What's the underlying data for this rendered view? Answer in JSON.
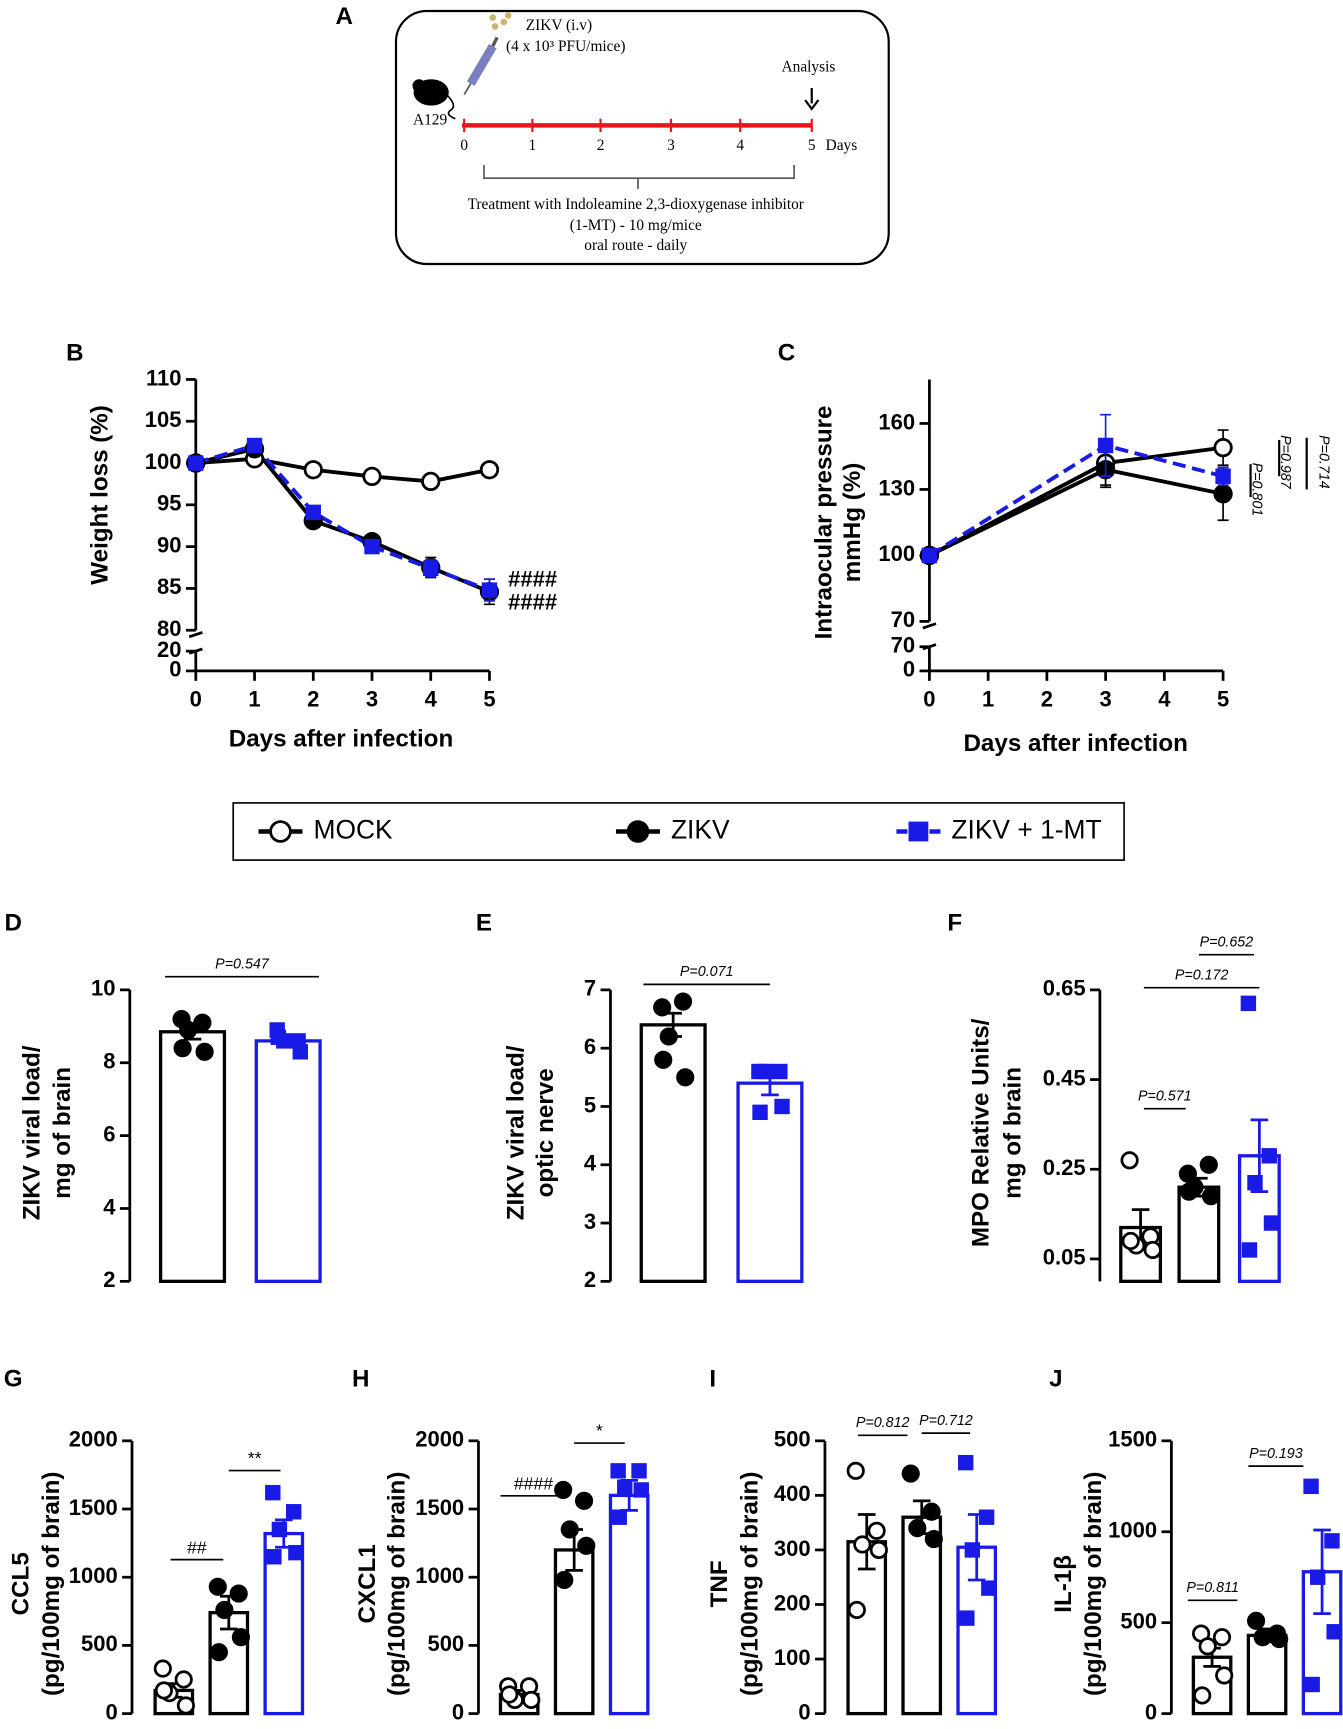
{
  "diagram": {
    "label": "A",
    "virus": "ZIKV  (i.v)",
    "dose": "(4 x 10³ PFU/mice)",
    "mouse": "A129",
    "analysis": "Analysis",
    "days": [
      0,
      1,
      2,
      3,
      4,
      5
    ],
    "days_label": "Days",
    "treatment": [
      "Treatment with Indoleamine 2,3-dioxygenase inhibitor",
      "(1-MT) - 10 mg/mice",
      "oral route - daily"
    ]
  },
  "chart_data": [
    {
      "type": "line",
      "label": "B",
      "xlabel": "Days after infection",
      "ylabel": "Weight loss (%)",
      "x": [
        0,
        1,
        2,
        3,
        4,
        5
      ],
      "xlim": [
        0,
        5
      ],
      "xticks": [
        0,
        1,
        2,
        3,
        4,
        5
      ],
      "ylim": [
        80,
        110
      ],
      "yticks": [
        80,
        85,
        90,
        95,
        100,
        105,
        110
      ],
      "ybreak": {
        "ylim": [
          0,
          20
        ],
        "yticks": [
          0,
          20
        ]
      },
      "annotations": [
        "####",
        "####"
      ],
      "series": [
        {
          "name": "MOCK",
          "color": "#000000",
          "marker": "open-circle",
          "values": [
            100,
            100.5,
            99.2,
            98.4,
            97.8,
            99.2
          ],
          "errors": [
            0,
            0.5,
            0.4,
            0.4,
            0.4,
            0.4
          ]
        },
        {
          "name": "ZIKV",
          "color": "#000000",
          "marker": "circle",
          "values": [
            100,
            101.7,
            93.1,
            90.6,
            87.5,
            84.6
          ],
          "errors": [
            0,
            0.5,
            0.6,
            0.5,
            1.2,
            1.5
          ]
        },
        {
          "name": "ZIKV + 1-MT",
          "color": "#1a1ae6",
          "marker": "square",
          "dash": true,
          "values": [
            100,
            102.1,
            94.1,
            90.0,
            87.4,
            84.8
          ],
          "errors": [
            0,
            0.5,
            0.8,
            0.6,
            1.0,
            1.3
          ]
        }
      ]
    },
    {
      "type": "line",
      "label": "C",
      "xlabel": "Days after infection",
      "ylabel": [
        "Intraocular pressure",
        "mmHg (%)"
      ],
      "x": [
        0,
        3,
        5
      ],
      "xlim": [
        0,
        5
      ],
      "xticks": [
        0,
        1,
        2,
        3,
        4,
        5
      ],
      "ylim": [
        70,
        180
      ],
      "yticks": [
        70,
        100,
        130,
        160
      ],
      "ybreak": {
        "ylim": [
          0,
          70
        ],
        "yticks": [
          0,
          70
        ]
      },
      "annotations": [
        "P=0.987",
        "P=0.714",
        "P=0.801"
      ],
      "series": [
        {
          "color": "#000000",
          "marker": "open-circle",
          "values": [
            100,
            142,
            149
          ],
          "errors": [
            0,
            10,
            8
          ]
        },
        {
          "color": "#000000",
          "marker": "circle",
          "values": [
            100,
            139,
            128
          ],
          "errors": [
            0,
            8,
            12
          ]
        },
        {
          "color": "#1a1ae6",
          "marker": "square",
          "dash": true,
          "values": [
            100,
            150,
            136
          ],
          "errors": [
            0,
            14,
            4
          ]
        }
      ]
    },
    {
      "type": "bar",
      "label": "D",
      "ylabel": [
        "ZIKV viral load/",
        "mg of brain"
      ],
      "ylim": [
        2,
        10
      ],
      "yticks": [
        2,
        4,
        6,
        8,
        10
      ],
      "annotations": [
        "P=0.547"
      ],
      "groups": [
        {
          "color": "#000000",
          "marker": "circle",
          "value": 8.85,
          "error": 0.2,
          "points": [
            9.2,
            9.1,
            8.9,
            8.3,
            8.4
          ]
        },
        {
          "color": "#1a1ae6",
          "marker": "square",
          "value": 8.6,
          "error": 0.1,
          "points": [
            8.9,
            8.6,
            8.6,
            8.3,
            8.7
          ]
        }
      ]
    },
    {
      "type": "bar",
      "label": "E",
      "ylabel": [
        "ZIKV viral load/",
        "optic nerve"
      ],
      "ylim": [
        2,
        7
      ],
      "yticks": [
        2,
        3,
        4,
        5,
        6,
        7
      ],
      "annotations": [
        "P=0.071"
      ],
      "groups": [
        {
          "color": "#000000",
          "marker": "circle",
          "value": 6.4,
          "error": 0.2,
          "points": [
            6.7,
            6.8,
            6.2,
            5.5,
            5.8
          ]
        },
        {
          "color": "#1a1ae6",
          "marker": "square",
          "value": 5.4,
          "error": 0.2,
          "points": [
            5.6,
            5.6,
            5.6,
            5.0,
            4.9
          ]
        }
      ]
    },
    {
      "type": "bar",
      "label": "F",
      "ylabel": [
        "MPO Relative Units/",
        "mg of brain"
      ],
      "ylim": [
        0,
        0.65
      ],
      "yticks": [
        0.05,
        0.25,
        0.45,
        0.65
      ],
      "annotations": [
        "P=0.571",
        "P=0.172",
        "P=0.652"
      ],
      "groups": [
        {
          "color": "#000000",
          "marker": "open-circle",
          "value": 0.12,
          "error": 0.04,
          "points": [
            0.27,
            0.1,
            0.08,
            0.07,
            0.09
          ]
        },
        {
          "color": "#000000",
          "marker": "circle",
          "value": 0.21,
          "error": 0.02,
          "points": [
            0.24,
            0.26,
            0.21,
            0.19,
            0.2
          ]
        },
        {
          "color": "#1a1ae6",
          "marker": "square",
          "value": 0.28,
          "error": 0.08,
          "points": [
            0.62,
            0.28,
            0.22,
            0.13,
            0.07
          ]
        }
      ]
    },
    {
      "type": "bar",
      "label": "G",
      "ylabel": [
        "CCL5",
        "(pg/100mg of brain)"
      ],
      "ylim": [
        0,
        2000
      ],
      "yticks": [
        0,
        500,
        1000,
        1500,
        2000
      ],
      "annotations": [
        "##",
        "**"
      ],
      "groups": [
        {
          "color": "#000000",
          "marker": "open-circle",
          "value": 170,
          "error": 50,
          "points": [
            330,
            250,
            150,
            60,
            170
          ]
        },
        {
          "color": "#000000",
          "marker": "circle",
          "value": 740,
          "error": 120,
          "points": [
            930,
            880,
            760,
            560,
            450
          ]
        },
        {
          "color": "#1a1ae6",
          "marker": "square",
          "value": 1320,
          "error": 100,
          "points": [
            1620,
            1480,
            1350,
            1180,
            1150
          ]
        }
      ]
    },
    {
      "type": "bar",
      "label": "H",
      "ylabel": [
        "CXCL1",
        "(pg/100mg of brain)"
      ],
      "ylim": [
        0,
        2000
      ],
      "yticks": [
        0,
        500,
        1000,
        1500,
        2000
      ],
      "annotations": [
        "####",
        "*"
      ],
      "groups": [
        {
          "color": "#000000",
          "marker": "open-circle",
          "value": 140,
          "error": 30,
          "points": [
            200,
            200,
            100,
            100,
            140
          ]
        },
        {
          "color": "#000000",
          "marker": "circle",
          "value": 1200,
          "error": 150,
          "points": [
            1640,
            1560,
            1350,
            1230,
            980
          ]
        },
        {
          "color": "#1a1ae6",
          "marker": "square",
          "value": 1600,
          "error": 110,
          "points": [
            1780,
            1780,
            1660,
            1640,
            1440
          ]
        }
      ]
    },
    {
      "type": "bar",
      "label": "I",
      "ylabel": [
        "TNF",
        "(pg/100mg of brain)"
      ],
      "ylim": [
        0,
        500
      ],
      "yticks": [
        0,
        100,
        200,
        300,
        400,
        500
      ],
      "annotations": [
        "P=0.812",
        "P=0.712"
      ],
      "groups": [
        {
          "color": "#000000",
          "marker": "open-circle",
          "value": 315,
          "error": 50,
          "points": [
            445,
            335,
            310,
            300,
            190
          ]
        },
        {
          "color": "#000000",
          "marker": "circle",
          "value": 360,
          "error": 30,
          "points": [
            440,
            370,
            340,
            320
          ]
        },
        {
          "color": "#1a1ae6",
          "marker": "square",
          "value": 305,
          "error": 60,
          "points": [
            460,
            360,
            300,
            230,
            175
          ]
        }
      ]
    },
    {
      "type": "bar",
      "label": "J",
      "ylabel": [
        "IL-1β",
        "(pg/100mg of brain)"
      ],
      "ylim": [
        0,
        1500
      ],
      "yticks": [
        0,
        500,
        1000,
        1500
      ],
      "annotations": [
        "P=0.811",
        "P=0.193"
      ],
      "groups": [
        {
          "color": "#000000",
          "marker": "open-circle",
          "value": 310,
          "error": 50,
          "points": [
            440,
            420,
            370,
            210,
            100
          ]
        },
        {
          "color": "#000000",
          "marker": "circle",
          "value": 430,
          "error": 35,
          "points": [
            510,
            440,
            420,
            410
          ]
        },
        {
          "color": "#1a1ae6",
          "marker": "square",
          "value": 780,
          "error": 230,
          "points": [
            1250,
            950,
            750,
            450,
            160
          ]
        }
      ]
    }
  ]
}
